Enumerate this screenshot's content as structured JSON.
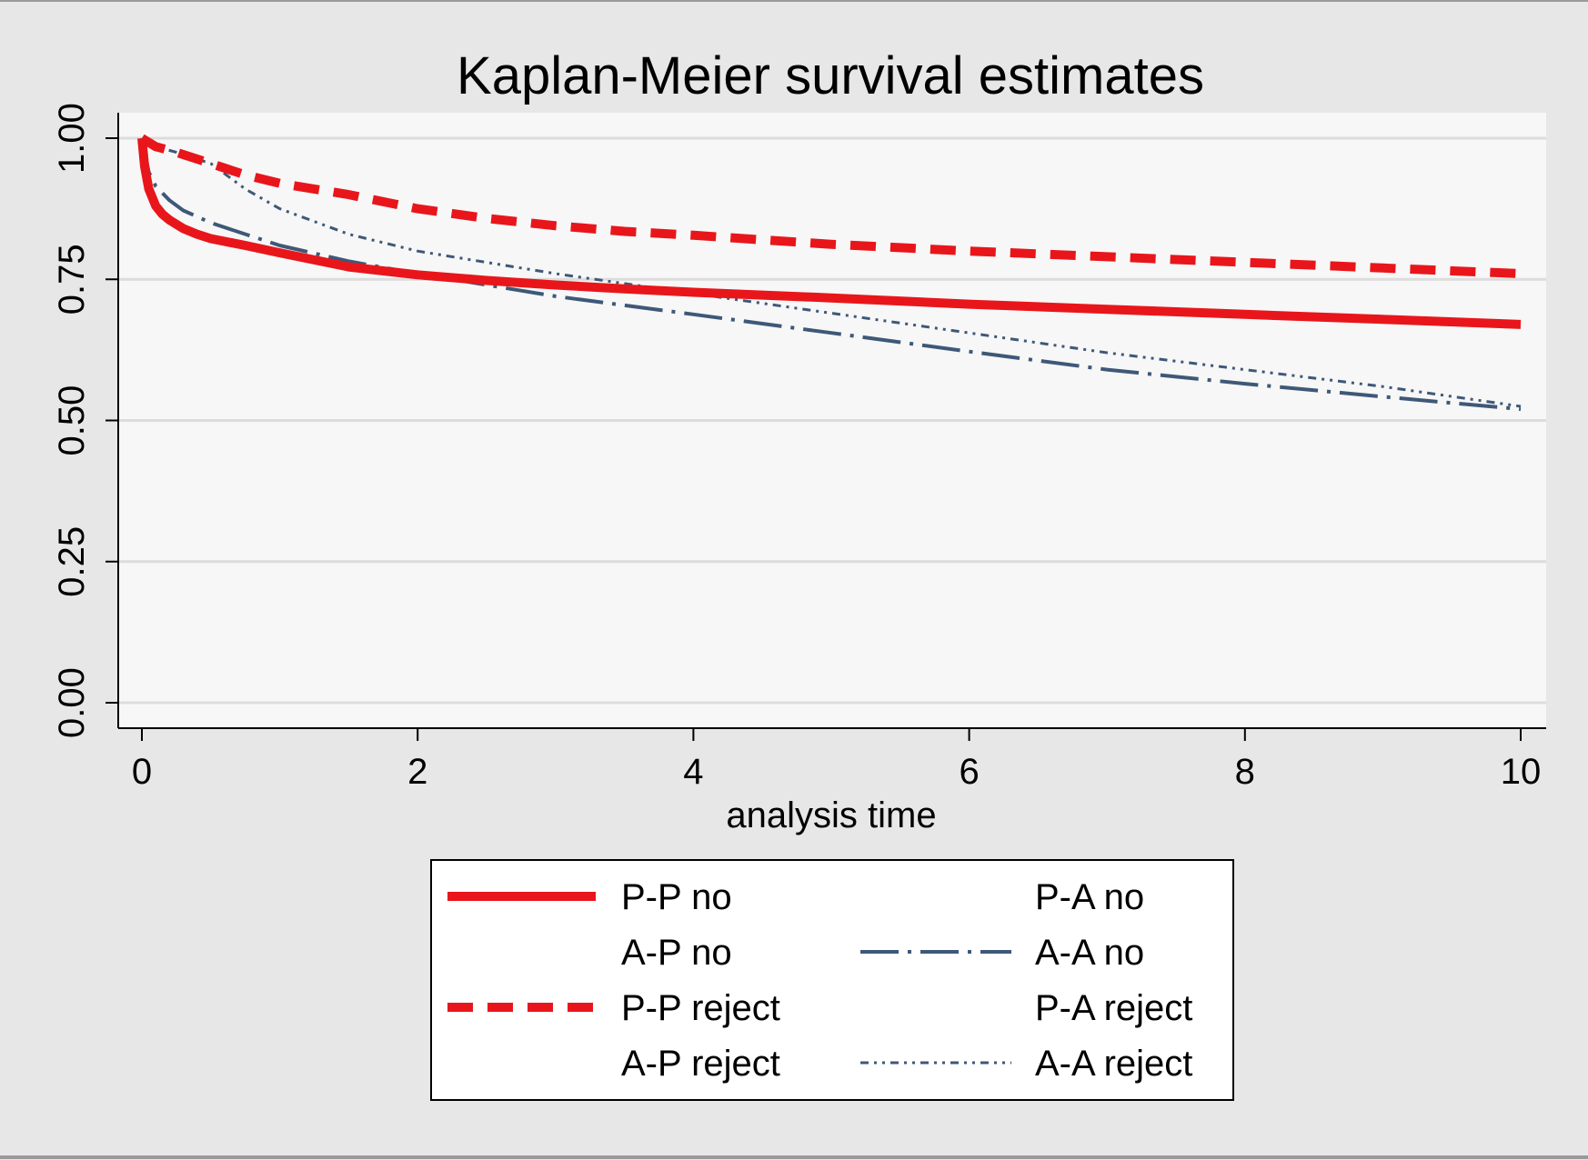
{
  "chart_data": {
    "type": "line",
    "title": "Kaplan-Meier survival estimates",
    "xlabel": "analysis time",
    "ylabel": "",
    "xlim": [
      0,
      10
    ],
    "ylim": [
      0,
      1
    ],
    "x_ticks": [
      0,
      2,
      4,
      6,
      8,
      10
    ],
    "x_tick_labels": [
      "0",
      "2",
      "4",
      "6",
      "8",
      "10"
    ],
    "y_ticks": [
      0,
      0.25,
      0.5,
      0.75,
      1.0
    ],
    "y_tick_labels": [
      "0.00",
      "0.25",
      "0.50",
      "0.75",
      "1.00"
    ],
    "grid": "horizontal",
    "legend_position": "bottom",
    "legend_columns": 2,
    "background_color": "#e7e7e7",
    "plot_background_color": "#f7f7f7",
    "series": [
      {
        "name": "P-P no",
        "color": "#e8161b",
        "style": "solid",
        "x": [
          0,
          0.02,
          0.05,
          0.1,
          0.15,
          0.2,
          0.3,
          0.4,
          0.5,
          0.75,
          1.0,
          1.5,
          2.0,
          2.5,
          3.0,
          3.5,
          4.0,
          5.0,
          6.0,
          7.0,
          8.0,
          9.0,
          10.0
        ],
        "y": [
          1.0,
          0.95,
          0.91,
          0.88,
          0.865,
          0.855,
          0.84,
          0.83,
          0.822,
          0.81,
          0.797,
          0.772,
          0.758,
          0.748,
          0.74,
          0.733,
          0.727,
          0.717,
          0.706,
          0.697,
          0.688,
          0.679,
          0.67
        ]
      },
      {
        "name": "P-A no",
        "color": "",
        "style": "none",
        "x": [],
        "y": []
      },
      {
        "name": "A-P no",
        "color": "",
        "style": "none",
        "x": [],
        "y": []
      },
      {
        "name": "A-A no",
        "color": "#3e5878",
        "style": "longdash-dot",
        "x": [
          0,
          0.05,
          0.1,
          0.2,
          0.3,
          0.5,
          0.75,
          1.0,
          1.5,
          2.0,
          3.0,
          4.0,
          5.0,
          6.0,
          7.0,
          8.0,
          9.0,
          10.0
        ],
        "y": [
          1.0,
          0.94,
          0.915,
          0.89,
          0.872,
          0.85,
          0.83,
          0.81,
          0.782,
          0.76,
          0.72,
          0.688,
          0.655,
          0.622,
          0.59,
          0.565,
          0.542,
          0.52
        ]
      },
      {
        "name": "P-P reject",
        "color": "#e8161b",
        "style": "dash",
        "x": [
          0,
          0.1,
          0.25,
          0.5,
          0.75,
          1.0,
          1.5,
          2.0,
          2.5,
          3.0,
          3.5,
          4.0,
          4.5,
          5.0,
          6.0,
          7.0,
          8.0,
          9.0,
          10.0
        ],
        "y": [
          1.0,
          0.985,
          0.975,
          0.955,
          0.935,
          0.92,
          0.9,
          0.875,
          0.858,
          0.845,
          0.835,
          0.828,
          0.82,
          0.812,
          0.8,
          0.79,
          0.78,
          0.77,
          0.76
        ]
      },
      {
        "name": "P-A reject",
        "color": "",
        "style": "none",
        "x": [],
        "y": []
      },
      {
        "name": "A-P reject",
        "color": "",
        "style": "none",
        "x": [],
        "y": []
      },
      {
        "name": "A-A reject",
        "color": "#3e5878",
        "style": "dash-dot-dot",
        "x": [
          0,
          0.05,
          0.1,
          0.25,
          0.5,
          0.75,
          1.0,
          1.5,
          2.0,
          2.5,
          3.0,
          4.0,
          5.0,
          6.0,
          7.0,
          8.0,
          9.0,
          10.0
        ],
        "y": [
          1.0,
          0.99,
          0.985,
          0.975,
          0.955,
          0.91,
          0.875,
          0.83,
          0.8,
          0.78,
          0.76,
          0.725,
          0.69,
          0.655,
          0.62,
          0.59,
          0.56,
          0.525
        ]
      }
    ]
  }
}
